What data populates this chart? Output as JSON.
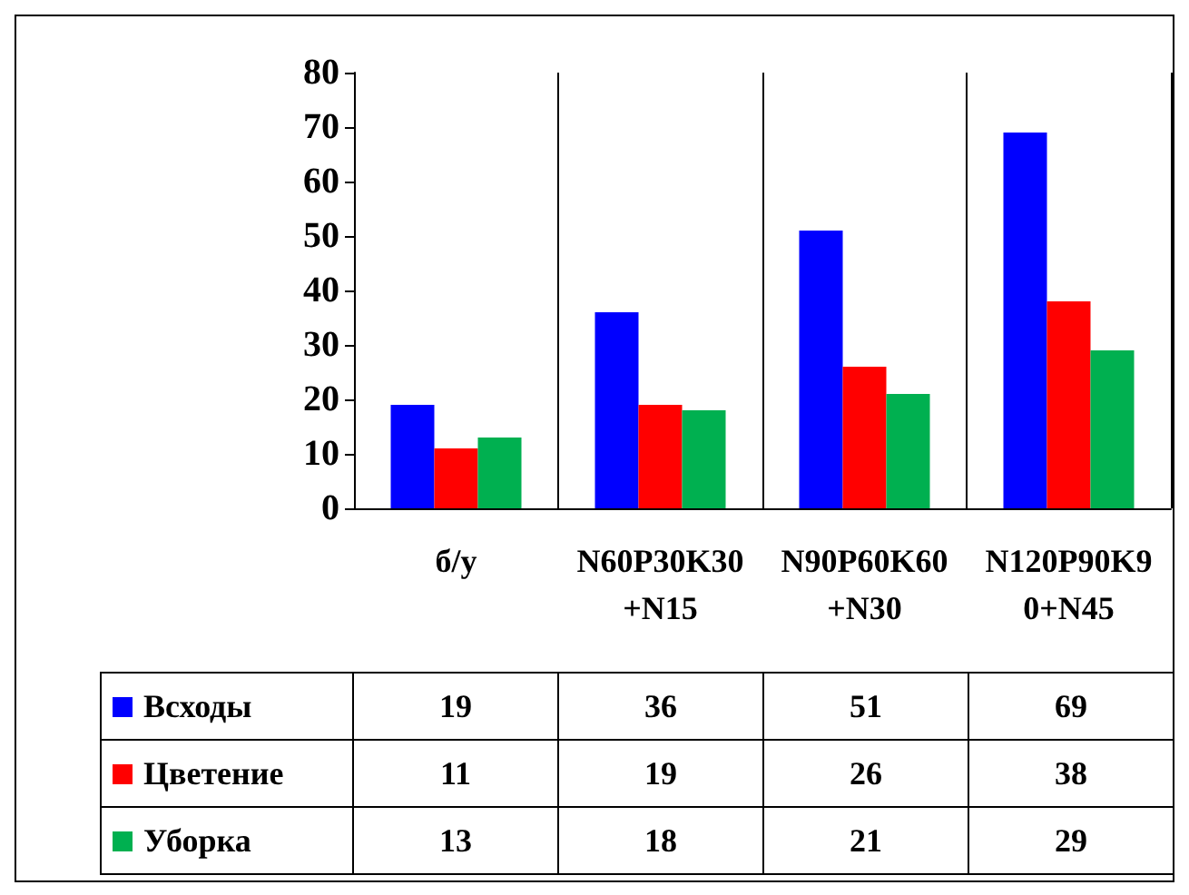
{
  "chart_data": {
    "type": "bar",
    "categories": [
      "б/у",
      "N60P30K30+N15",
      "N90P60K60+N30",
      "N120P90K90+N45"
    ],
    "series": [
      {
        "name": "Всходы",
        "color": "#0000ff",
        "values": [
          19,
          36,
          51,
          69
        ]
      },
      {
        "name": "Цветение",
        "color": "#ff0000",
        "values": [
          11,
          19,
          26,
          38
        ]
      },
      {
        "name": "Уборка",
        "color": "#00b050",
        "values": [
          13,
          18,
          21,
          29
        ]
      }
    ],
    "ylim": [
      0,
      80
    ],
    "yticks": [
      0,
      10,
      20,
      30,
      40,
      50,
      60,
      70,
      80
    ],
    "grid": "x",
    "legend": "bottom left",
    "data_labels": true
  }
}
